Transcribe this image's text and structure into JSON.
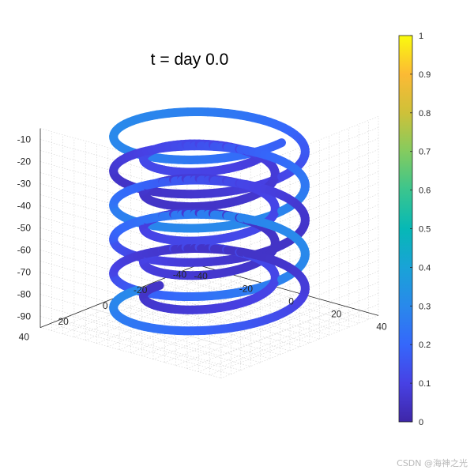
{
  "chart_data": {
    "type": "line",
    "plot_kind": "3d-helix-tube",
    "title": "t = day 0.0",
    "view": "isometric-3d",
    "grid": true,
    "box": true,
    "xlim": [
      -40,
      40
    ],
    "ylim": [
      -40,
      40
    ],
    "zlim": [
      -95,
      -5
    ],
    "x_ticks": [
      "-40",
      "-20",
      "0",
      "20",
      "40"
    ],
    "y_ticks": [
      "40",
      "20",
      "0",
      "-20",
      "-40"
    ],
    "z_ticks": [
      "-10",
      "-20",
      "-30",
      "-40",
      "-50",
      "-60",
      "-70",
      "-80",
      "-90"
    ],
    "series": [
      {
        "helix_radius": 32,
        "z_top": -5,
        "z_bottom": -90,
        "turns": 5.5,
        "color_value_range": [
          0.05,
          0.3
        ]
      },
      {
        "helix_radius": 22,
        "z_top": -15,
        "z_bottom": -85,
        "turns": 4.5,
        "color_value_range": [
          0.05,
          0.12
        ]
      }
    ],
    "colorbar": {
      "colormap": "parula",
      "range": [
        0,
        1
      ],
      "ticks": [
        "0",
        "0.1",
        "0.2",
        "0.3",
        "0.4",
        "0.5",
        "0.6",
        "0.7",
        "0.8",
        "0.9",
        "1"
      ],
      "location": "right"
    }
  },
  "watermark": "CSDN @海神之光"
}
